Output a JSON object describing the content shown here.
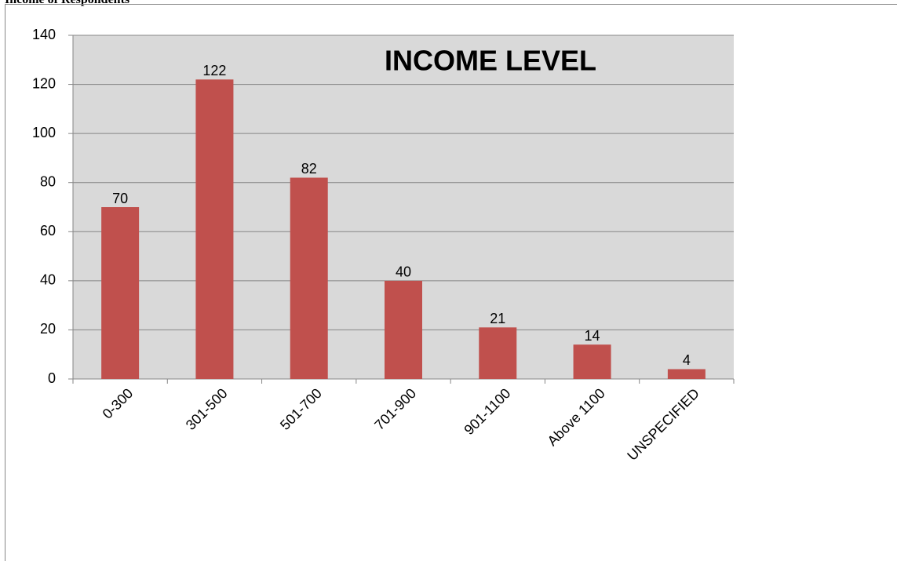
{
  "header": {
    "title": "Income of Respondents"
  },
  "chart_data": {
    "type": "bar",
    "title": "INCOME LEVEL",
    "categories": [
      "0-300",
      "301-500",
      "501-700",
      "701-900",
      "901-1100",
      "Above 1100",
      "UNSPECIFIED"
    ],
    "values": [
      70,
      122,
      82,
      40,
      21,
      14,
      4
    ],
    "color": "#c0504d",
    "ylim": [
      0,
      140
    ],
    "yticks": [
      0,
      20,
      40,
      60,
      80,
      100,
      120,
      140
    ],
    "grid": true
  }
}
